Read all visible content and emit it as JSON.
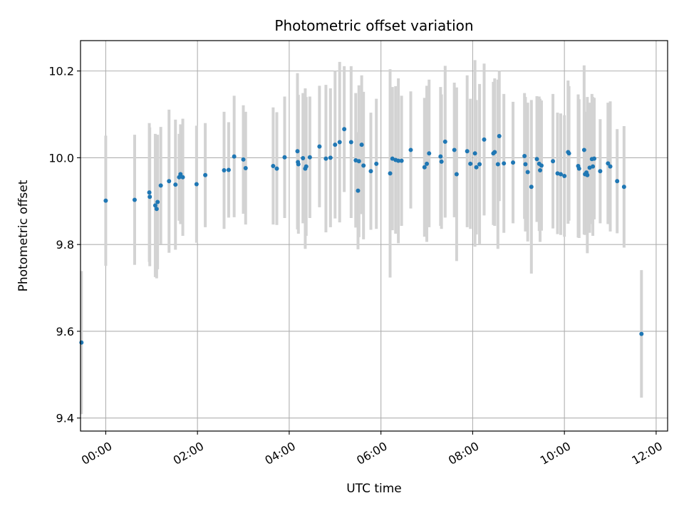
{
  "chart_data": {
    "type": "scatter",
    "title": "Photometric offset variation",
    "xlabel": "UTC time",
    "ylabel": "Photometric offset",
    "xlim": [
      -0.55,
      12.25
    ],
    "ylim": [
      9.37,
      10.27
    ],
    "x_ticks": [
      {
        "value": 0,
        "label": "00:00"
      },
      {
        "value": 2,
        "label": "02:00"
      },
      {
        "value": 4,
        "label": "04:00"
      },
      {
        "value": 6,
        "label": "06:00"
      },
      {
        "value": 8,
        "label": "08:00"
      },
      {
        "value": 10,
        "label": "10:00"
      },
      {
        "value": 12,
        "label": "12:00"
      }
    ],
    "y_ticks": [
      {
        "value": 9.4,
        "label": "9.4"
      },
      {
        "value": 9.6,
        "label": "9.6"
      },
      {
        "value": 9.8,
        "label": "9.8"
      },
      {
        "value": 10.0,
        "label": "10.0"
      },
      {
        "value": 10.2,
        "label": "10.2"
      }
    ],
    "grid": true,
    "colors": {
      "marker": "#1f77b4",
      "errorbar": "#d3d3d3",
      "grid": "#b0b0b0"
    },
    "series": [
      {
        "x": [
          -0.53,
          0.0,
          0.63,
          0.95,
          0.96,
          1.08,
          1.11,
          1.13,
          1.2,
          1.38,
          1.52,
          1.6,
          1.63,
          1.68,
          1.98,
          2.17,
          2.58,
          2.68,
          2.8,
          3.0,
          3.05,
          3.65,
          3.73,
          3.9,
          4.18,
          4.19,
          4.2,
          4.3,
          4.35,
          4.37,
          4.45,
          4.66,
          4.8,
          4.9,
          5.0,
          5.1,
          5.2,
          5.35,
          5.45,
          5.5,
          5.52,
          5.58,
          5.62,
          5.78,
          5.9,
          6.2,
          6.25,
          6.32,
          6.38,
          6.45,
          6.65,
          6.95,
          7.0,
          7.05,
          7.3,
          7.32,
          7.4,
          7.6,
          7.65,
          7.88,
          7.95,
          8.05,
          8.08,
          8.15,
          8.25,
          8.45,
          8.48,
          8.55,
          8.58,
          8.68,
          8.88,
          9.13,
          9.15,
          9.2,
          9.28,
          9.4,
          9.45,
          9.47,
          9.5,
          9.75,
          9.85,
          9.92,
          10.0,
          10.08,
          10.1,
          10.3,
          10.32,
          10.43,
          10.45,
          10.48,
          10.5,
          10.55,
          10.6,
          10.62,
          10.65,
          10.78,
          10.95,
          11.0,
          11.15,
          11.3,
          11.68
        ],
        "y": [
          9.574,
          9.901,
          9.903,
          9.92,
          9.91,
          9.89,
          9.882,
          9.898,
          9.936,
          9.946,
          9.938,
          9.955,
          9.962,
          9.955,
          9.939,
          9.96,
          9.971,
          9.972,
          10.003,
          9.996,
          9.976,
          9.981,
          9.975,
          10.001,
          10.015,
          9.99,
          9.985,
          9.999,
          9.975,
          9.98,
          10.001,
          10.026,
          9.998,
          10.0,
          10.03,
          10.036,
          10.066,
          10.036,
          9.994,
          9.924,
          9.992,
          10.03,
          9.982,
          9.969,
          9.986,
          9.964,
          9.998,
          9.995,
          9.993,
          9.993,
          10.018,
          9.978,
          9.986,
          10.01,
          10.003,
          9.991,
          10.037,
          10.018,
          9.962,
          10.015,
          9.986,
          10.01,
          9.978,
          9.985,
          10.042,
          10.01,
          10.013,
          9.985,
          10.05,
          9.987,
          9.989,
          10.004,
          9.985,
          9.967,
          9.933,
          9.997,
          9.986,
          9.971,
          9.982,
          9.992,
          9.964,
          9.962,
          9.958,
          10.013,
          10.01,
          9.981,
          9.975,
          10.018,
          9.962,
          9.966,
          9.96,
          9.977,
          9.997,
          9.98,
          9.998,
          9.969,
          9.987,
          9.98,
          9.946,
          9.933,
          9.594
        ],
        "yerr": [
          0.165,
          0.15,
          0.15,
          0.16,
          0.16,
          0.165,
          0.16,
          0.155,
          0.135,
          0.165,
          0.15,
          0.1,
          0.115,
          0.135,
          0.135,
          0.12,
          0.135,
          0.11,
          0.14,
          0.125,
          0.13,
          0.135,
          0.13,
          0.14,
          0.18,
          0.15,
          0.16,
          0.15,
          0.185,
          0.16,
          0.14,
          0.14,
          0.17,
          0.16,
          0.17,
          0.185,
          0.145,
          0.175,
          0.155,
          0.135,
          0.175,
          0.16,
          0.17,
          0.135,
          0.15,
          0.24,
          0.165,
          0.17,
          0.19,
          0.15,
          0.135,
          0.16,
          0.18,
          0.17,
          0.16,
          0.155,
          0.175,
          0.155,
          0.2,
          0.175,
          0.15,
          0.215,
          0.155,
          0.185,
          0.175,
          0.165,
          0.17,
          0.195,
          0.15,
          0.16,
          0.14,
          0.145,
          0.155,
          0.16,
          0.2,
          0.145,
          0.155,
          0.165,
          0.15,
          0.155,
          0.14,
          0.14,
          0.14,
          0.165,
          0.155,
          0.165,
          0.16,
          0.195,
          0.14,
          0.14,
          0.18,
          0.15,
          0.15,
          0.16,
          0.14,
          0.12,
          0.14,
          0.15,
          0.12,
          0.14,
          0.147
        ]
      }
    ]
  }
}
